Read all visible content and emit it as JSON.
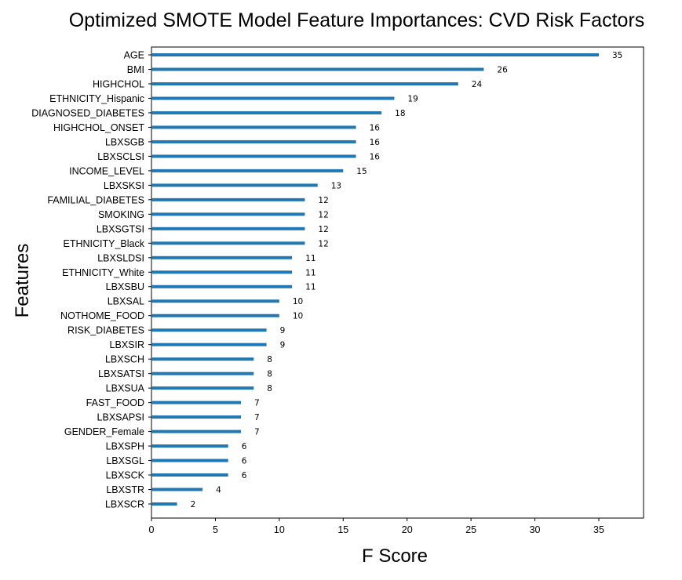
{
  "chart_data": {
    "type": "bar",
    "orientation": "horizontal",
    "title": "Optimized SMOTE Model Feature Importances: CVD Risk Factors",
    "xlabel": "F Score",
    "ylabel": "Features",
    "xlim": [
      0,
      38.5
    ],
    "xticks": [
      0,
      5,
      10,
      15,
      20,
      25,
      30,
      35
    ],
    "grid": false,
    "bar_color": "#1f77b4",
    "categories": [
      "AGE",
      "BMI",
      "HIGHCHOL",
      "ETHNICITY_Hispanic",
      "DIAGNOSED_DIABETES",
      "HIGHCHOL_ONSET",
      "LBXSGB",
      "LBXSCLSI",
      "INCOME_LEVEL",
      "LBXSKSI",
      "FAMILIAL_DIABETES",
      "SMOKING",
      "LBXSGTSI",
      "ETHNICITY_Black",
      "LBXSLDSI",
      "ETHNICITY_White",
      "LBXSBU",
      "LBXSAL",
      "NOTHOME_FOOD",
      "RISK_DIABETES",
      "LBXSIR",
      "LBXSCH",
      "LBXSATSI",
      "LBXSUA",
      "FAST_FOOD",
      "LBXSAPSI",
      "GENDER_Female",
      "LBXSPH",
      "LBXSGL",
      "LBXSCK",
      "LBXSTR",
      "LBXSCR"
    ],
    "values": [
      35,
      26,
      24,
      19,
      18,
      16,
      16,
      16,
      15,
      13,
      12,
      12,
      12,
      12,
      11,
      11,
      11,
      10,
      10,
      9,
      9,
      8,
      8,
      8,
      7,
      7,
      7,
      6,
      6,
      6,
      4,
      2
    ]
  }
}
